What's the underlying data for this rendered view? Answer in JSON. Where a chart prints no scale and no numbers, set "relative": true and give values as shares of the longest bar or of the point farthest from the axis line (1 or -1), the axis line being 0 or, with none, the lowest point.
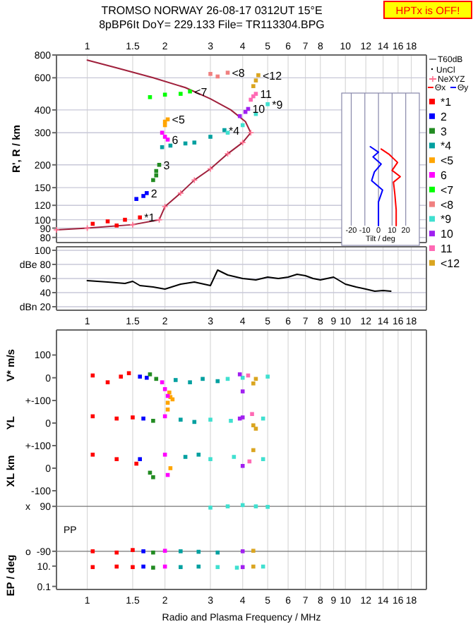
{
  "chart_data": [
    {
      "type": "scatter",
      "title": "TROMSO NORWAY   26-08-17 0312UT 15°E",
      "subtitle": "8pBP6It DoY= 229.133 File= TR113304.BPG",
      "ylabel": "R', R / km",
      "log": "xy",
      "grid": true,
      "legend": "right",
      "marker": "square",
      "annotations": [
        "HPTx is OFF!",
        "UnCl"
      ],
      "xlim": [
        0.76,
        20.6
      ],
      "ylim": [
        75,
        800
      ],
      "xticks": [
        1,
        1.5,
        2,
        3,
        4,
        5,
        6,
        7,
        8,
        10,
        12,
        14,
        16,
        18
      ],
      "yticks": [
        80,
        90,
        100,
        120,
        150,
        200,
        300,
        400,
        600,
        800
      ],
      "series": [
        {
          "name": "NeXYZ",
          "type": "line",
          "marker": "cross",
          "color": "#a0203c",
          "x": [
            0.76,
            1.0,
            1.5,
            1.9,
            2.0,
            2.3,
            2.6,
            3.0,
            3.5,
            4.0,
            4.3,
            4.1,
            3.6,
            3.0,
            2.4,
            1.8,
            1.3,
            1.0
          ],
          "values": [
            88,
            90,
            94,
            100,
            118,
            140,
            165,
            190,
            230,
            265,
            300,
            345,
            400,
            460,
            530,
            600,
            680,
            750
          ]
        },
        {
          "name": "*1",
          "color": "#ff0000",
          "x": [
            1.05,
            1.2,
            1.3,
            1.4,
            1.6
          ],
          "values": [
            95,
            98,
            93,
            100,
            103
          ]
        },
        {
          "name": "2",
          "color": "#0000ff",
          "x": [
            1.55,
            1.65,
            1.7
          ],
          "values": [
            130,
            135,
            140
          ]
        },
        {
          "name": "3",
          "color": "#228b22",
          "x": [
            1.8,
            1.85,
            1.85,
            1.9
          ],
          "values": [
            165,
            175,
            185,
            200
          ]
        },
        {
          "name": "*4",
          "color": "#00a0a0",
          "x": [
            1.95,
            2.1,
            2.4,
            2.6,
            3.0,
            3.4
          ],
          "values": [
            250,
            255,
            262,
            265,
            285,
            310
          ]
        },
        {
          "name": "<5",
          "color": "#ffa500",
          "x": [
            2.0,
            2.0,
            2.05
          ],
          "values": [
            330,
            345,
            355
          ]
        },
        {
          "name": "6",
          "color": "#ff00ff",
          "x": [
            1.95,
            2.0,
            2.05
          ],
          "values": [
            300,
            285,
            275
          ]
        },
        {
          "name": "<7",
          "color": "#00ff00",
          "x": [
            1.75,
            2.0,
            2.3,
            2.5
          ],
          "values": [
            470,
            485,
            490,
            505
          ]
        },
        {
          "name": "<8",
          "color": "#f08080",
          "x": [
            3.0,
            3.2,
            3.5
          ],
          "values": [
            630,
            610,
            640
          ]
        },
        {
          "name": "*9",
          "color": "#40e0d0",
          "x": [
            3.5,
            4.0,
            4.5,
            5.0
          ],
          "values": [
            300,
            330,
            380,
            430
          ]
        },
        {
          "name": "10",
          "color": "#a020f0",
          "x": [
            3.9,
            4.1,
            4.2
          ],
          "values": [
            370,
            390,
            405
          ]
        },
        {
          "name": "11",
          "color": "#ff69b4",
          "x": [
            4.3,
            4.4,
            4.5
          ],
          "values": [
            455,
            475,
            490
          ]
        },
        {
          "name": "<12",
          "color": "#daa520",
          "x": [
            4.4,
            4.5,
            4.6
          ],
          "values": [
            540,
            580,
            620
          ]
        }
      ]
    },
    {
      "type": "line",
      "xlabel": "Tilt / deg",
      "relative": true,
      "grid": "x",
      "legend": "right",
      "tick_labels": "x",
      "xlim": [
        -27,
        30
      ],
      "xticks": [
        -20,
        -10,
        0,
        10,
        20
      ],
      "series": [
        {
          "name": "Θx",
          "color": "#ff0000",
          "x": [
            13,
            13,
            12,
            11,
            16,
            10,
            14,
            8,
            2
          ],
          "values": [
            0,
            0.2,
            0.4,
            0.55,
            0.62,
            0.7,
            0.8,
            0.9,
            0.97
          ]
        },
        {
          "name": "Θy",
          "color": "#0000ff",
          "x": [
            0,
            0,
            3,
            -5,
            -3,
            2,
            -4,
            0,
            -6
          ],
          "values": [
            0,
            0.3,
            0.45,
            0.57,
            0.68,
            0.78,
            0.87,
            0.93,
            1
          ]
        }
      ]
    },
    {
      "type": "line",
      "log": "x",
      "grid": true,
      "legend": "right",
      "xlim": [
        0.76,
        20.6
      ],
      "ylim": [
        15,
        105
      ],
      "xticks": [
        1,
        1.5,
        2,
        3,
        4,
        5,
        6,
        7,
        8,
        9,
        10,
        12,
        14,
        16,
        18
      ],
      "yticks": [
        100,
        {
          "value": 80,
          "label": "dBe 80"
        },
        60,
        40,
        {
          "value": 20,
          "label": "dBn 20"
        }
      ],
      "series": [
        {
          "name": "T60dB",
          "color": "#000000",
          "x": [
            1,
            1.2,
            1.4,
            1.5,
            1.6,
            1.8,
            2,
            2.3,
            2.6,
            3,
            3.2,
            3.5,
            4,
            4.5,
            5,
            5.5,
            6,
            6.5,
            7,
            7.5,
            8,
            9,
            10,
            11,
            12,
            13,
            14,
            15
          ],
          "values": [
            57,
            55,
            53,
            56,
            50,
            48,
            45,
            52,
            55,
            50,
            72,
            65,
            60,
            58,
            62,
            60,
            62,
            66,
            64,
            60,
            58,
            62,
            52,
            48,
            45,
            42,
            43,
            42
          ]
        }
      ]
    },
    {
      "type": "scatter",
      "ylabel": "V* m/s",
      "log": "x",
      "grid": "x",
      "tick_labels": "y",
      "marker": "square",
      "xlim": [
        0.76,
        20.6
      ],
      "ylim": [
        -100,
        210
      ],
      "xticks": [
        1,
        1.5,
        2,
        3,
        4,
        5,
        6,
        7,
        8,
        9,
        10,
        12,
        14,
        16,
        18
      ],
      "yticks": [
        100,
        0,
        {
          "value": -100,
          "label": "+-100"
        }
      ],
      "series": [
        {
          "color": "#ff0000",
          "x": [
            1.05,
            1.2,
            1.35,
            1.45
          ],
          "values": [
            10,
            -20,
            5,
            20
          ]
        },
        {
          "color": "#0000ff",
          "x": [
            1.6,
            1.7
          ],
          "values": [
            5,
            0
          ]
        },
        {
          "color": "#228b22",
          "x": [
            1.75,
            1.85
          ],
          "values": [
            15,
            -5
          ]
        },
        {
          "color": "#00a0a0",
          "x": [
            2.2,
            2.5,
            2.8,
            3.2
          ],
          "values": [
            -10,
            -20,
            -5,
            -15
          ]
        },
        {
          "color": "#ffa500",
          "x": [
            2.08,
            2.1,
            2.14
          ],
          "values": [
            -65,
            -85,
            -95
          ]
        },
        {
          "color": "#ff00ff",
          "x": [
            1.95,
            2.0,
            2.05
          ],
          "values": [
            -20,
            -50,
            -80
          ]
        },
        {
          "color": "#40e0d0",
          "x": [
            3.5,
            4.0,
            5.0
          ],
          "values": [
            -5,
            0,
            5
          ]
        },
        {
          "color": "#a020f0",
          "x": [
            3.9,
            4.0
          ],
          "values": [
            15,
            -60
          ]
        },
        {
          "color": "#ff69b4",
          "x": [
            4.2
          ],
          "values": [
            10
          ]
        },
        {
          "color": "#daa520",
          "x": [
            4.4,
            4.5
          ],
          "values": [
            -25,
            -5
          ]
        }
      ]
    },
    {
      "type": "scatter",
      "ylabel": "YL",
      "log": "x",
      "grid": "x",
      "tick_labels": "y",
      "marker": "square",
      "xlim": [
        0.76,
        20.6
      ],
      "ylim": [
        -100,
        100
      ],
      "xticks": [
        1,
        1.5,
        2,
        3,
        4,
        5,
        6,
        7,
        8,
        9,
        10,
        12,
        14,
        16,
        18
      ],
      "yticks": [
        0,
        {
          "value": -100,
          "label": "+-100"
        }
      ],
      "series": [
        {
          "color": "#ff0000",
          "x": [
            1.05,
            1.3,
            1.5
          ],
          "values": [
            30,
            20,
            25
          ]
        },
        {
          "color": "#0000ff",
          "x": [
            1.65
          ],
          "values": [
            20
          ]
        },
        {
          "color": "#228b22",
          "x": [
            1.8
          ],
          "values": [
            10
          ]
        },
        {
          "color": "#00a0a0",
          "x": [
            2.3,
            2.6
          ],
          "values": [
            15,
            5
          ]
        },
        {
          "color": "#ffa500",
          "x": [
            2.05,
            2.05
          ],
          "values": [
            60,
            90
          ]
        },
        {
          "color": "#ff00ff",
          "x": [
            2.0
          ],
          "values": [
            30
          ]
        },
        {
          "color": "#40e0d0",
          "x": [
            3.0,
            3.6,
            4.8
          ],
          "values": [
            15,
            10,
            20
          ]
        },
        {
          "color": "#a020f0",
          "x": [
            3.9,
            4.0
          ],
          "values": [
            20,
            25
          ]
        },
        {
          "color": "#ff69b4",
          "x": [
            4.35
          ],
          "values": [
            40
          ]
        },
        {
          "color": "#daa520",
          "x": [
            4.4,
            4.5
          ],
          "values": [
            -10,
            -25
          ]
        }
      ]
    },
    {
      "type": "scatter",
      "ylabel": "XL  km",
      "log": "x",
      "grid": "x",
      "tick_labels": "y",
      "marker": "square",
      "xlim": [
        0.76,
        20.6
      ],
      "ylim": [
        -125,
        100
      ],
      "xticks": [
        1,
        1.5,
        2,
        3,
        4,
        5,
        6,
        7,
        8,
        9,
        10,
        12,
        14,
        16,
        18
      ],
      "yticks": [
        0,
        -100
      ],
      "series": [
        {
          "color": "#ff0000",
          "x": [
            1.05,
            1.3,
            1.55
          ],
          "values": [
            60,
            40,
            20
          ]
        },
        {
          "color": "#0000ff",
          "x": [
            1.6
          ],
          "values": [
            40
          ]
        },
        {
          "color": "#228b22",
          "x": [
            1.75,
            1.8
          ],
          "values": [
            -20,
            -40
          ]
        },
        {
          "color": "#00a0a0",
          "x": [
            2.4,
            2.7
          ],
          "values": [
            50,
            60
          ]
        },
        {
          "color": "#ffa500",
          "x": [
            2.1
          ],
          "values": [
            0
          ]
        },
        {
          "color": "#ff00ff",
          "x": [
            2.0,
            2.05
          ],
          "values": [
            60,
            -30
          ]
        },
        {
          "color": "#40e0d0",
          "x": [
            3.0,
            3.7,
            4.8
          ],
          "values": [
            40,
            50,
            40
          ]
        },
        {
          "color": "#a020f0",
          "x": [
            4.0
          ],
          "values": [
            10
          ]
        },
        {
          "color": "#ff69b4",
          "x": [
            4.25
          ],
          "values": [
            30
          ]
        },
        {
          "color": "#daa520",
          "x": [
            4.4
          ],
          "values": [
            80
          ]
        }
      ]
    },
    {
      "type": "scatter",
      "ylabel": "PP",
      "log": "x",
      "grid": true,
      "tick_labels": "y",
      "marker": "square",
      "annotations": [
        "x",
        "o"
      ],
      "xlim": [
        0.76,
        20.6
      ],
      "ylim": [
        -130,
        130
      ],
      "xticks": [
        1,
        1.5,
        2,
        3,
        4,
        5,
        6,
        7,
        8,
        9,
        10,
        12,
        14,
        16,
        18
      ],
      "yticks": [
        90,
        -90
      ],
      "series": [
        {
          "color": "#40e0d0",
          "x": [
            3.0,
            3.5,
            4.0,
            4.5,
            5.0
          ],
          "values": [
            85,
            90,
            95,
            90,
            88
          ]
        },
        {
          "color": "#ff0000",
          "x": [
            1.05,
            1.3,
            1.5
          ],
          "values": [
            -90,
            -95,
            -85
          ]
        },
        {
          "color": "#0000ff",
          "x": [
            1.65
          ],
          "values": [
            -90
          ]
        },
        {
          "color": "#228b22",
          "x": [
            1.8
          ],
          "values": [
            -95
          ]
        },
        {
          "color": "#ff00ff",
          "x": [
            2.0
          ],
          "values": [
            -88
          ]
        },
        {
          "color": "#00a0a0",
          "x": [
            2.3,
            2.7,
            3.2
          ],
          "values": [
            -90,
            -92,
            -95
          ]
        },
        {
          "color": "#a020f0",
          "x": [
            4.0
          ],
          "values": [
            -90
          ]
        },
        {
          "color": "#daa520",
          "x": [
            4.4
          ],
          "values": [
            -88
          ]
        }
      ]
    },
    {
      "type": "scatter",
      "ylabel": "EP / deg",
      "xlabel": "Radio and Plasma Frequency / MHz",
      "log": "xy",
      "grid": "x",
      "marker": "square",
      "xlim": [
        0.76,
        20.6
      ],
      "ylim": [
        0.05,
        30
      ],
      "xticks": [
        1,
        1.5,
        2,
        3,
        4,
        5,
        6,
        7,
        8,
        9,
        10,
        12,
        14,
        16,
        18
      ],
      "yticks": [
        {
          "value": 10,
          "label": "10."
        },
        0.1
      ],
      "series": [
        {
          "color": "#ff0000",
          "x": [
            1.05,
            1.3,
            1.5
          ],
          "values": [
            8,
            9,
            8
          ]
        },
        {
          "color": "#0000ff",
          "x": [
            1.65
          ],
          "values": [
            9
          ]
        },
        {
          "color": "#228b22",
          "x": [
            1.8
          ],
          "values": [
            7
          ]
        },
        {
          "color": "#ff00ff",
          "x": [
            2.0
          ],
          "values": [
            9
          ]
        },
        {
          "color": "#00a0a0",
          "x": [
            2.3,
            2.7
          ],
          "values": [
            8,
            9
          ]
        },
        {
          "color": "#40e0d0",
          "x": [
            3.2,
            3.8,
            4.8
          ],
          "values": [
            8,
            7,
            9
          ]
        },
        {
          "color": "#a020f0",
          "x": [
            4.0
          ],
          "values": [
            8
          ]
        },
        {
          "color": "#daa520",
          "x": [
            4.4
          ],
          "values": [
            9
          ]
        }
      ]
    }
  ]
}
